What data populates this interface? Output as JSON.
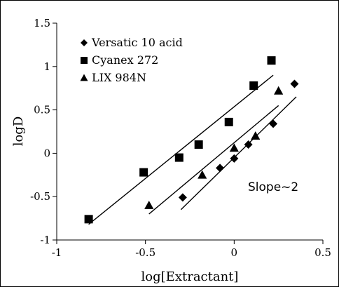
{
  "chart_data": {
    "type": "scatter",
    "xlabel": "log[Extractant]",
    "ylabel": "logD",
    "xlim": [
      -1,
      0.5
    ],
    "ylim": [
      -1,
      1.5
    ],
    "xticks": [
      -1,
      -0.5,
      0,
      0.5
    ],
    "xtick_labels": [
      "-1",
      "-0.5",
      "0",
      "0.5"
    ],
    "yticks": [
      -1,
      -0.5,
      0,
      0.5,
      1,
      1.5
    ],
    "ytick_labels": [
      "-1",
      "-0.5",
      "0",
      "0.5",
      "1",
      "1.5"
    ],
    "grid": false,
    "legend_position": "top-left",
    "annotation": "Slope~2",
    "series": [
      {
        "name": "Versatic 10 acid",
        "marker": "diamond",
        "color": "#000000",
        "points": [
          [
            -0.29,
            -0.51
          ],
          [
            -0.08,
            -0.17
          ],
          [
            0.0,
            -0.06
          ],
          [
            0.08,
            0.1
          ],
          [
            0.22,
            0.34
          ],
          [
            0.34,
            0.8
          ]
        ],
        "fit": [
          [
            -0.3,
            -0.65
          ],
          [
            0.35,
            0.65
          ]
        ]
      },
      {
        "name": "Cyanex 272",
        "marker": "square",
        "color": "#000000",
        "points": [
          [
            -0.82,
            -0.76
          ],
          [
            -0.51,
            -0.22
          ],
          [
            -0.31,
            -0.05
          ],
          [
            -0.2,
            0.1
          ],
          [
            -0.03,
            0.36
          ],
          [
            0.11,
            0.78
          ],
          [
            0.21,
            1.07
          ]
        ],
        "fit": [
          [
            -0.82,
            -0.82
          ],
          [
            0.22,
            0.9
          ]
        ]
      },
      {
        "name": "LIX 984N",
        "marker": "triangle",
        "color": "#000000",
        "points": [
          [
            -0.48,
            -0.6
          ],
          [
            -0.18,
            -0.25
          ],
          [
            0.0,
            0.06
          ],
          [
            0.12,
            0.2
          ],
          [
            0.25,
            0.72
          ]
        ],
        "fit": [
          [
            -0.48,
            -0.7
          ],
          [
            0.25,
            0.55
          ]
        ]
      }
    ]
  }
}
